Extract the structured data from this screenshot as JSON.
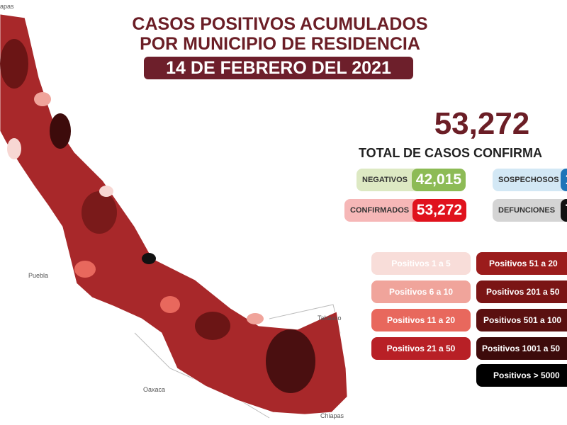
{
  "header": {
    "title_line1": "CASOS POSITIVOS ACUMULADOS",
    "title_line2": "POR MUNICIPIO DE RESIDENCIA",
    "date": "14 DE FEBRERO DEL 2021"
  },
  "total": {
    "value": "53,272",
    "label": "TOTAL DE CASOS CONFIRMA"
  },
  "stats": [
    {
      "label": "NEGATIVOS",
      "value": "42,015"
    },
    {
      "label": "SOSPECHOSOS",
      "value": "1"
    },
    {
      "label": "CONFIRMADOS",
      "value": "53,272"
    },
    {
      "label": "DEFUNCIONES",
      "value": "7"
    }
  ],
  "legend": [
    "Positivos 1 a 5",
    "Positivos 6 a 10",
    "Positivos 11 a 20",
    "Positivos 21 a 50",
    "Positivos 51 a 20",
    "Positivos 201 a 50",
    "Positivos 501 a 100",
    "Positivos 1001 a 50",
    "Positivos > 5000"
  ],
  "map_labels": [
    "apas",
    "Puebla",
    "Oaxaca",
    "Tabasco",
    "Chiapas"
  ]
}
